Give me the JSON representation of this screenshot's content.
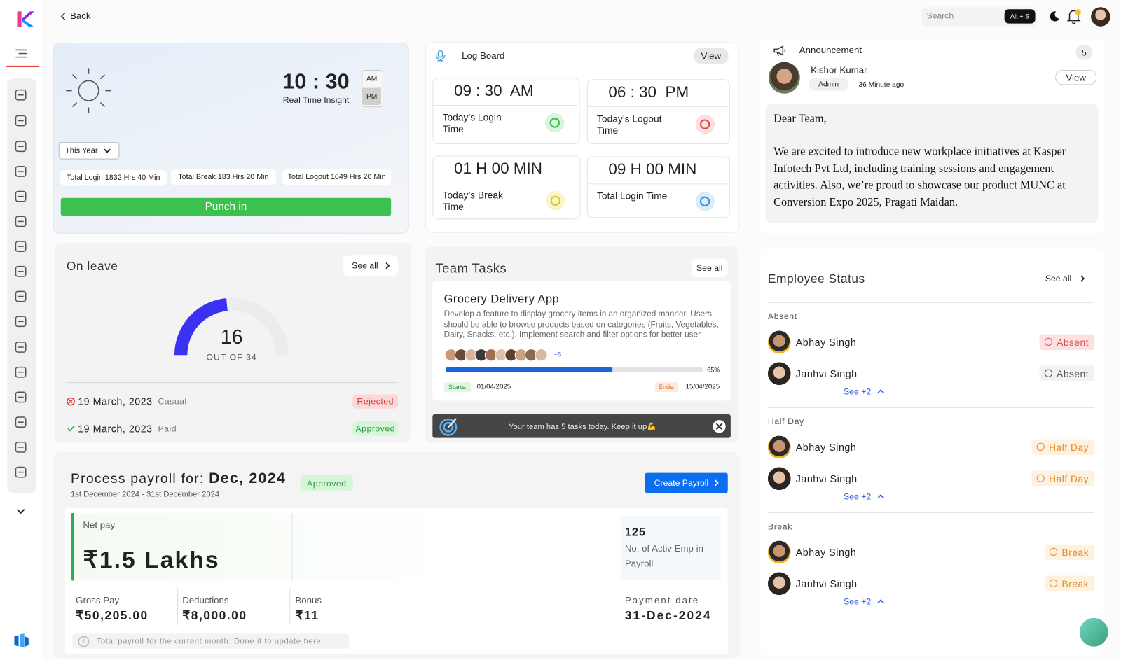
{
  "header": {
    "back": "Back",
    "search": "Search",
    "shortcut": "Alt + S"
  },
  "clock": {
    "time": "10 : 30",
    "caption": "Real Time Insight",
    "am": "AM",
    "pm": "PM",
    "period": "This Year",
    "stats": [
      "Total Login 1832 Hrs 40 Min",
      "Total Break 183 Hrs 20 Min",
      "Total Logout 1649 Hrs 20 Min"
    ],
    "button": "Punch in"
  },
  "log_board": {
    "title": "Log Board",
    "view": "View",
    "cards": [
      {
        "time": "09 : 30  AM",
        "label": "Today’s Login Time"
      },
      {
        "time": "06 : 30  PM",
        "label": "Today’s Logout Time"
      },
      {
        "time": "01 H 00 MIN",
        "label": "Today’s Break Time"
      },
      {
        "time": "09 H 00 MIN",
        "label": "Total Login Time"
      }
    ]
  },
  "announcement": {
    "title": "Announcement",
    "count": "5",
    "author": "Kishor Kumar",
    "role": "Admin",
    "time": "36 Minute ago",
    "view": "View",
    "greeting": "Dear Team,",
    "body": "We are excited to introduce new workplace initiatives at Kasper Infotech Pvt Ltd, including training sessions and engagement activities. Also, we’re proud to showcase our product MUNC at Conversion Expo 2025, Pragati Maidan."
  },
  "on_leave": {
    "title": "On leave",
    "see_all": "See all",
    "count": 16,
    "out_of": "OUT OF",
    "total": 34,
    "entries": [
      {
        "date": "19 March, 2023",
        "type": "Casual",
        "status": "Rejected"
      },
      {
        "date": "19 March, 2023",
        "type": "Paid",
        "status": "Approved"
      }
    ]
  },
  "team_tasks": {
    "title": "Team Tasks",
    "see_all": "See all",
    "task": {
      "name": "Grocery Delivery App",
      "description": "Develop a feature to display grocery items in an organized manner. Users should be able to browse products based on categories (Fruits, Vegetables, Dairy, Snacks, etc.). Implement search and filter options for better user experience. E...",
      "more_members": "+5",
      "progress": {
        "value": 65,
        "label": "65%"
      },
      "starts_label": "Starts:",
      "starts": "01/04/2025",
      "ends_label": "Ends:",
      "ends": "15/04/2025"
    },
    "banner": "Your team has 5 tasks today. Keep it up💪"
  },
  "payroll": {
    "title": "Process payroll for:",
    "month": "Dec, 2024",
    "status": "Approved",
    "period": "1st December 2024 - 31st December 2024",
    "button": "Create Payroll",
    "net_pay_label": "Net pay",
    "net_pay": "₹1.5 Lakhs",
    "employees": "125",
    "employees_label": "No. of Activ Emp in Payroll",
    "gross_label": "Gross Pay",
    "gross": "₹50,205.00",
    "deductions_label": "Deductions",
    "deductions": "₹8,000.00",
    "bonus_label": "Bonus",
    "bonus": "₹11",
    "date_label": "Payment date",
    "date": "31-Dec-2024",
    "note": "Total payroll for the current month. Done it to update here"
  },
  "employee_status": {
    "title": "Employee Status",
    "see_all": "See all",
    "groups": [
      {
        "title": "Absent",
        "employees": [
          {
            "name": "Abhay Singh",
            "status": "Absent"
          },
          {
            "name": "Janhvi Singh",
            "status": "Absent"
          }
        ],
        "more": "See +2"
      },
      {
        "title": "Half Day",
        "employees": [
          {
            "name": "Abhay Singh",
            "status": "Half Day"
          },
          {
            "name": "Janhvi Singh",
            "status": "Half Day"
          }
        ],
        "more": "See +2"
      },
      {
        "title": "Break",
        "employees": [
          {
            "name": "Abhay Singh",
            "status": "Break"
          },
          {
            "name": "Janhvi Singh",
            "status": "Break"
          }
        ],
        "more": "See +2"
      }
    ]
  }
}
